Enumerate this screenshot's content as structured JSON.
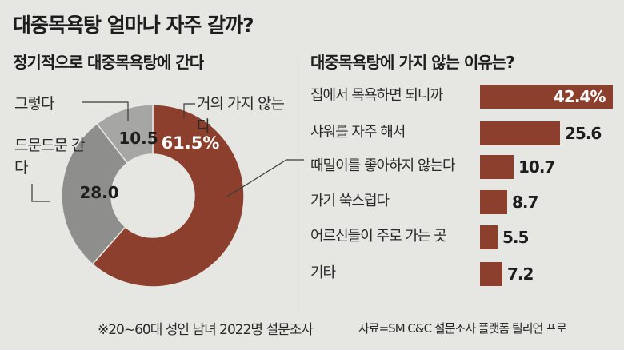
{
  "title": "대중목욕탕 얼마나 자주 갈까?",
  "footnote": "※20~60대 성인 남녀 2022명 설문조사",
  "source": "자료=SM C&C 설문조사 플랫폼 틸리언 프로",
  "colors": {
    "accent": "#8b3f2c",
    "gray_dark": "#8e8e8c",
    "gray_light": "#a6a6a4",
    "background": "#e6e6e3"
  },
  "chart_data": [
    {
      "type": "pie",
      "title": "정기적으로 대중목욕탕에 간다",
      "slices": [
        {
          "label": "거의 가지 않는다",
          "value": 61.5,
          "value_text": "61.5%",
          "color": "#8b3f2c"
        },
        {
          "label": "드문드문 간다",
          "value": 28.0,
          "value_text": "28.0",
          "color": "#8e8e8c"
        },
        {
          "label": "그렇다",
          "value": 10.5,
          "value_text": "10.5",
          "color": "#a6a6a4"
        }
      ]
    },
    {
      "type": "bar",
      "title": "대중목욕탕에 가지 않는 이유는?",
      "categories": [
        "집에서 목욕하면 되니까",
        "샤워를 자주 해서",
        "때밀이를 좋아하지 않는다",
        "가기 쑥스럽다",
        "어르신들이 주로 가는 곳",
        "기타"
      ],
      "values": [
        42.4,
        25.6,
        10.7,
        8.7,
        5.5,
        7.2
      ],
      "value_texts": [
        "42.4%",
        "25.6",
        "10.7",
        "8.7",
        "5.5",
        "7.2"
      ],
      "color": "#8b3f2c"
    }
  ]
}
